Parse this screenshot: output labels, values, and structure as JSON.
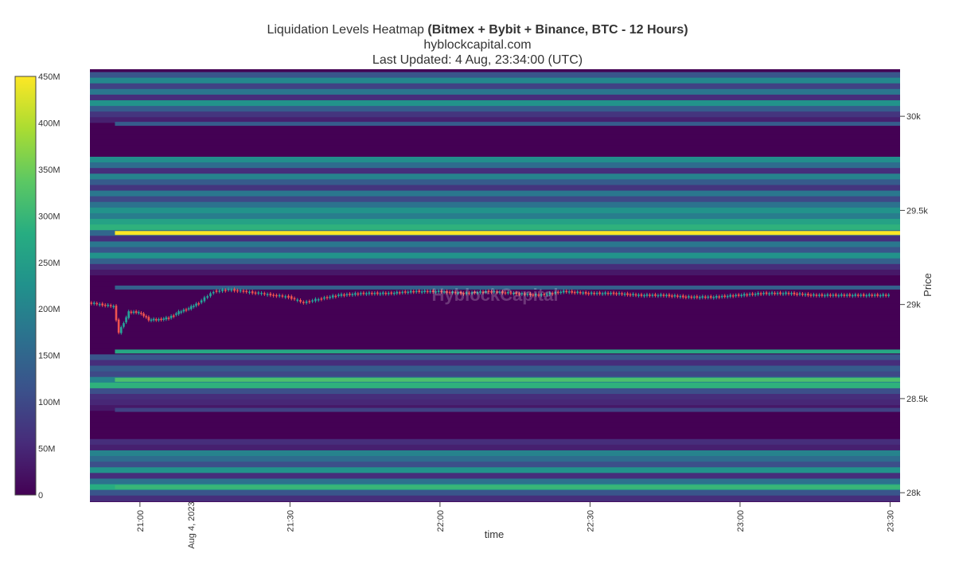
{
  "chart_data": {
    "type": "heatmap",
    "title": "Liquidation Levels Heatmap",
    "title_bold": "(Bitmex + Bybit + Binance, BTC - 12 Hours)",
    "subtitle": "hyblockcapital.com",
    "updated": "Last Updated: 4 Aug, 23:34:00 (UTC)",
    "watermark": "HyblockCapital",
    "xlabel": "time",
    "ylabel": "Price",
    "date_label": "Aug 4, 2023",
    "x_ticks": [
      "21:00",
      "21:30",
      "22:00",
      "22:30",
      "23:00",
      "23:30"
    ],
    "y_ticks": [
      "30k",
      "29.5k",
      "29k",
      "28.5k",
      "28k"
    ],
    "y_tick_values": [
      30000,
      29500,
      29000,
      28500,
      28000
    ],
    "ylim": [
      27950,
      30250
    ],
    "xlim_minutes": [
      1250,
      1412
    ],
    "colorbar": {
      "ticks": [
        "450M",
        "400M",
        "350M",
        "300M",
        "250M",
        "200M",
        "150M",
        "100M",
        "50M",
        "0"
      ],
      "range": [
        0,
        450
      ],
      "unit": "M",
      "colors": [
        "#440154",
        "#472c7a",
        "#3b518b",
        "#2c718e",
        "#21918c",
        "#27ad81",
        "#5cc863",
        "#aadc32",
        "#fde725"
      ]
    },
    "bands": [
      {
        "price": 30220,
        "value": 120
      },
      {
        "price": 30190,
        "value": 210
      },
      {
        "price": 30160,
        "value": 90
      },
      {
        "price": 30130,
        "value": 180
      },
      {
        "price": 30100,
        "value": 60
      },
      {
        "price": 30070,
        "value": 230
      },
      {
        "price": 30040,
        "value": 130
      },
      {
        "price": 30010,
        "value": 70
      },
      {
        "price": 29980,
        "value": 40
      },
      {
        "price": 29950,
        "value": 0
      },
      {
        "price": 29920,
        "value": 0
      },
      {
        "price": 29890,
        "value": 0
      },
      {
        "price": 29860,
        "value": 0
      },
      {
        "price": 29830,
        "value": 0
      },
      {
        "price": 29800,
        "value": 0
      },
      {
        "price": 29770,
        "value": 220
      },
      {
        "price": 29740,
        "value": 160
      },
      {
        "price": 29710,
        "value": 60
      },
      {
        "price": 29680,
        "value": 200
      },
      {
        "price": 29650,
        "value": 130
      },
      {
        "price": 29620,
        "value": 70
      },
      {
        "price": 29590,
        "value": 180
      },
      {
        "price": 29560,
        "value": 100
      },
      {
        "price": 29530,
        "value": 170
      },
      {
        "price": 29500,
        "value": 230
      },
      {
        "price": 29470,
        "value": 190
      },
      {
        "price": 29440,
        "value": 260
      },
      {
        "price": 29410,
        "value": 290
      },
      {
        "price": 29380,
        "value": 150
      },
      {
        "price": 29350,
        "value": 60
      },
      {
        "price": 29320,
        "value": 180
      },
      {
        "price": 29290,
        "value": 120
      },
      {
        "price": 29260,
        "value": 230
      },
      {
        "price": 29230,
        "value": 140
      },
      {
        "price": 29200,
        "value": 60
      },
      {
        "price": 29170,
        "value": 30
      },
      {
        "price": 29140,
        "value": 0
      },
      {
        "price": 29110,
        "value": 0
      },
      {
        "price": 29080,
        "value": 0
      },
      {
        "price": 29050,
        "value": 0
      },
      {
        "price": 29020,
        "value": 0
      },
      {
        "price": 28990,
        "value": 0
      },
      {
        "price": 28960,
        "value": 0
      },
      {
        "price": 28930,
        "value": 0
      },
      {
        "price": 28900,
        "value": 0
      },
      {
        "price": 28870,
        "value": 0
      },
      {
        "price": 28840,
        "value": 0
      },
      {
        "price": 28810,
        "value": 0
      },
      {
        "price": 28780,
        "value": 0
      },
      {
        "price": 28750,
        "value": 0
      },
      {
        "price": 28720,
        "value": 120
      },
      {
        "price": 28690,
        "value": 60
      },
      {
        "price": 28660,
        "value": 130
      },
      {
        "price": 28630,
        "value": 100
      },
      {
        "price": 28600,
        "value": 200
      },
      {
        "price": 28570,
        "value": 290
      },
      {
        "price": 28540,
        "value": 110
      },
      {
        "price": 28510,
        "value": 60
      },
      {
        "price": 28480,
        "value": 50
      },
      {
        "price": 28450,
        "value": 30
      },
      {
        "price": 28420,
        "value": 0
      },
      {
        "price": 28390,
        "value": 0
      },
      {
        "price": 28360,
        "value": 0
      },
      {
        "price": 28330,
        "value": 0
      },
      {
        "price": 28300,
        "value": 0
      },
      {
        "price": 28270,
        "value": 60
      },
      {
        "price": 28240,
        "value": 40
      },
      {
        "price": 28210,
        "value": 200
      },
      {
        "price": 28180,
        "value": 160
      },
      {
        "price": 28150,
        "value": 110
      },
      {
        "price": 28120,
        "value": 230
      },
      {
        "price": 28090,
        "value": 60
      },
      {
        "price": 28060,
        "value": 170
      },
      {
        "price": 28030,
        "value": 280
      },
      {
        "price": 28000,
        "value": 120
      },
      {
        "price": 27970,
        "value": 60
      }
    ],
    "highlight_lines": [
      {
        "price": 29380,
        "value": 450
      },
      {
        "price": 28750,
        "value": 270
      },
      {
        "price": 28600,
        "value": 320
      },
      {
        "price": 28030,
        "value": 300
      },
      {
        "price": 29960,
        "value": 130
      },
      {
        "price": 29090,
        "value": 140
      },
      {
        "price": 28440,
        "value": 90
      }
    ],
    "price_series": {
      "times": [
        1250,
        1255,
        1256,
        1258,
        1260,
        1262,
        1264,
        1266,
        1268,
        1270,
        1272,
        1275,
        1278,
        1281,
        1284,
        1287,
        1290,
        1293,
        1296,
        1300,
        1305,
        1310,
        1315,
        1320,
        1325,
        1330,
        1335,
        1340,
        1345,
        1350,
        1355,
        1360,
        1365,
        1370,
        1375,
        1380,
        1385,
        1390,
        1395,
        1400,
        1405,
        1410
      ],
      "prices": [
        29010,
        28990,
        28850,
        28960,
        28960,
        28920,
        28920,
        28930,
        28960,
        28980,
        29010,
        29070,
        29080,
        29070,
        29060,
        29050,
        29040,
        29010,
        29030,
        29050,
        29060,
        29060,
        29070,
        29070,
        29060,
        29070,
        29060,
        29050,
        29070,
        29060,
        29060,
        29050,
        29050,
        29040,
        29040,
        29050,
        29060,
        29060,
        29050,
        29050,
        29050,
        29050
      ]
    }
  }
}
